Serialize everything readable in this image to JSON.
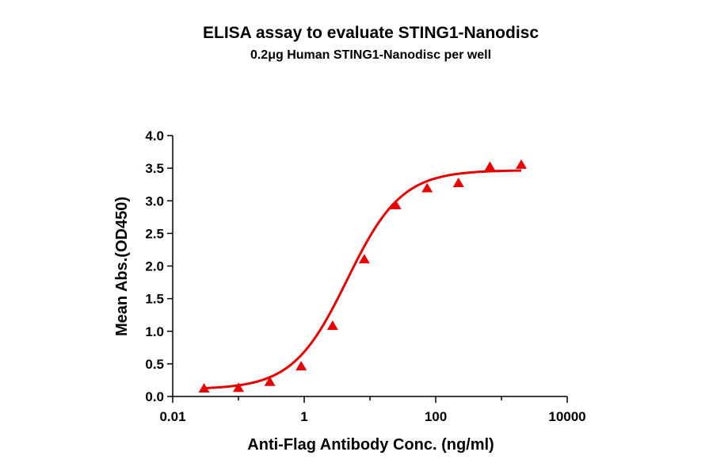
{
  "chart_data": {
    "type": "scatter",
    "title": "ELISA assay to evaluate STING1-Nanodisc",
    "subtitle": "0.2μg Human STING1-Nanodisc per well",
    "xlabel": "Anti-Flag Antibody Conc. (ng/ml)",
    "ylabel": "Mean Abs.(OD450)",
    "x_scale": "log",
    "xlim": [
      0.01,
      10000
    ],
    "ylim": [
      0,
      4.0
    ],
    "x_ticks": [
      0.01,
      1,
      100,
      10000
    ],
    "x_tick_labels": [
      "0.01",
      "1",
      "100",
      "10000"
    ],
    "y_ticks": [
      0,
      0.5,
      1.0,
      1.5,
      2.0,
      2.5,
      3.0,
      3.5,
      4.0
    ],
    "y_tick_labels": [
      "0.0",
      "0.5",
      "1.0",
      "1.5",
      "2.0",
      "2.5",
      "3.0",
      "3.5",
      "4.0"
    ],
    "grid": false,
    "legend": "none",
    "color": "#e60000",
    "marker": "triangle",
    "series": [
      {
        "x": [
          0.03,
          0.1,
          0.3,
          0.9,
          2.7,
          8.2,
          24.7,
          74,
          222,
          667,
          2000
        ],
        "y": [
          0.12,
          0.13,
          0.22,
          0.46,
          1.08,
          2.1,
          2.93,
          3.19,
          3.27,
          3.52,
          3.55
        ]
      }
    ],
    "fit_curve": {
      "model": "4PL",
      "bottom": 0.11,
      "top": 3.47,
      "ec50": 4.5,
      "hill": 1.05
    }
  }
}
